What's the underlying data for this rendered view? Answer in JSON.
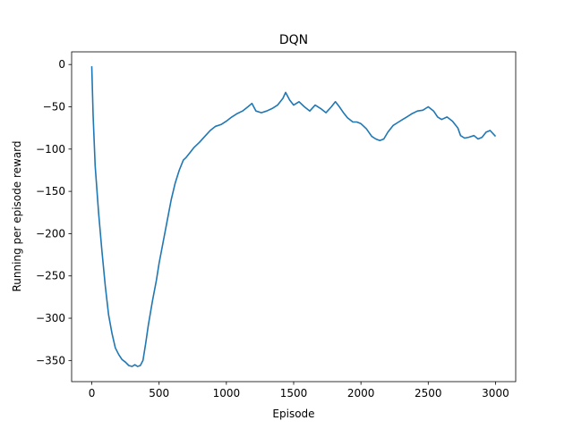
{
  "chart_data": {
    "type": "line",
    "title": "DQN",
    "xlabel": "Episode",
    "ylabel": "Running per episode reward",
    "xlim": [
      -150,
      3150
    ],
    "ylim": [
      -375,
      15
    ],
    "x_ticks": [
      0,
      500,
      1000,
      1500,
      2000,
      2500,
      3000
    ],
    "x_tick_labels": [
      "0",
      "500",
      "1000",
      "1500",
      "2000",
      "2500",
      "3000"
    ],
    "y_ticks": [
      0,
      -50,
      -100,
      -150,
      -200,
      -250,
      -300,
      -350
    ],
    "y_tick_labels": [
      "0",
      "−50",
      "−100",
      "−150",
      "−200",
      "−250",
      "−300",
      "−350"
    ],
    "grid": false,
    "legend": "none",
    "series": [
      {
        "color": "#1f77b4",
        "x": [
          0,
          10,
          25,
          50,
          75,
          100,
          125,
          150,
          175,
          200,
          225,
          250,
          275,
          300,
          320,
          340,
          360,
          380,
          400,
          420,
          450,
          480,
          500,
          530,
          560,
          590,
          620,
          650,
          680,
          700,
          730,
          760,
          800,
          840,
          880,
          920,
          960,
          1000,
          1040,
          1080,
          1120,
          1160,
          1190,
          1220,
          1260,
          1300,
          1340,
          1380,
          1420,
          1440,
          1470,
          1500,
          1540,
          1580,
          1620,
          1660,
          1700,
          1740,
          1780,
          1810,
          1840,
          1870,
          1900,
          1940,
          1970,
          2000,
          2040,
          2080,
          2110,
          2140,
          2170,
          2200,
          2240,
          2280,
          2310,
          2340,
          2380,
          2420,
          2460,
          2500,
          2540,
          2570,
          2600,
          2640,
          2680,
          2720,
          2740,
          2770,
          2800,
          2840,
          2870,
          2900,
          2930,
          2960,
          3000
        ],
        "y": [
          -2,
          -60,
          -120,
          -175,
          -220,
          -262,
          -296,
          -318,
          -335,
          -343,
          -349,
          -352,
          -356,
          -357,
          -355,
          -357,
          -356,
          -350,
          -330,
          -308,
          -280,
          -255,
          -235,
          -210,
          -185,
          -160,
          -140,
          -125,
          -113,
          -110,
          -104,
          -98,
          -92,
          -85,
          -78,
          -73,
          -71,
          -67,
          -62,
          -58,
          -55,
          -50,
          -46,
          -55,
          -57,
          -55,
          -52,
          -48,
          -40,
          -33,
          -42,
          -48,
          -44,
          -50,
          -55,
          -48,
          -52,
          -57,
          -50,
          -44,
          -50,
          -57,
          -63,
          -68,
          -68,
          -70,
          -76,
          -85,
          -88,
          -90,
          -88,
          -80,
          -72,
          -68,
          -65,
          -62,
          -58,
          -55,
          -54,
          -50,
          -55,
          -62,
          -65,
          -62,
          -67,
          -75,
          -84,
          -87,
          -86,
          -84,
          -88,
          -86,
          -80,
          -78,
          -85
        ]
      }
    ]
  }
}
